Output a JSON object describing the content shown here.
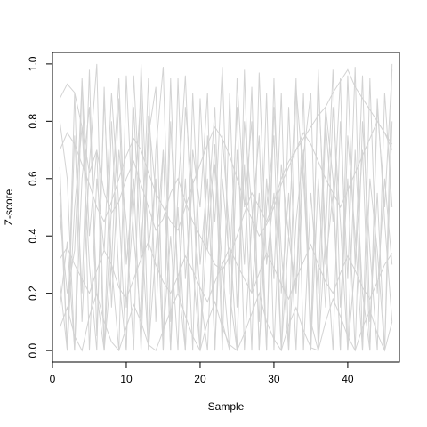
{
  "chart_data": {
    "type": "line",
    "title": "",
    "xlabel": "Sample",
    "ylabel": "Z-score",
    "x": [
      1,
      2,
      3,
      4,
      5,
      6,
      7,
      8,
      9,
      10,
      11,
      12,
      13,
      14,
      15,
      16,
      17,
      18,
      19,
      20,
      21,
      22,
      23,
      24,
      25,
      26,
      27,
      28,
      29,
      30,
      31,
      32,
      33,
      34,
      35,
      36,
      37,
      38,
      39,
      40,
      41,
      42,
      43,
      44,
      45,
      46
    ],
    "xlim": [
      0,
      47
    ],
    "ylim": [
      -0.04,
      1.04
    ],
    "x_ticks": [
      "0",
      "10",
      "20",
      "30",
      "40"
    ],
    "x_tick_values": [
      0,
      10,
      20,
      30,
      40
    ],
    "y_ticks": [
      "0.0",
      "0.2",
      "0.4",
      "0.6",
      "0.8",
      "1.0"
    ],
    "y_tick_values": [
      0,
      0.2,
      0.4,
      0.6,
      0.8,
      1.0
    ],
    "grid": false,
    "legend": "none",
    "line_color": "#d3d3d3",
    "axis_color": "#000000",
    "series": [
      {
        "values": [
          0.88,
          0.93,
          0.9,
          0.78,
          0.62,
          0.7,
          0.55,
          0.48,
          0.52,
          0.6,
          0.66,
          0.58,
          0.5,
          0.42,
          0.46,
          0.55,
          0.6,
          0.52,
          0.45,
          0.4,
          0.35,
          0.3,
          0.28,
          0.33,
          0.4,
          0.48,
          0.55,
          0.5,
          0.45,
          0.52,
          0.6,
          0.66,
          0.7,
          0.74,
          0.78,
          0.82,
          0.85,
          0.9,
          0.94,
          0.98,
          0.92,
          0.88,
          0.84,
          0.8,
          0.76,
          0.72
        ]
      },
      {
        "values": [
          0.64,
          0.0,
          0.75,
          0.2,
          0.98,
          0.05,
          0.88,
          0.3,
          0.0,
          0.96,
          0.4,
          0.1,
          0.82,
          0.55,
          0.0,
          0.95,
          0.2,
          0.6,
          0.0,
          0.88,
          0.35,
          0.72,
          0.0,
          0.9,
          0.15,
          0.65,
          0.0,
          0.97,
          0.3,
          0.55,
          0.0,
          0.85,
          0.2,
          0.7,
          0.05,
          0.93,
          0.4,
          0.0,
          0.8,
          0.25,
          0.99,
          0.0,
          0.6,
          0.35,
          0.0,
          1.0
        ]
      },
      {
        "values": [
          0.47,
          0.2,
          0.35,
          0.94,
          0.0,
          0.6,
          0.35,
          0.9,
          0.5,
          0.0,
          0.85,
          0.3,
          0.95,
          0.1,
          0.7,
          0.0,
          0.55,
          0.96,
          0.3,
          0.0,
          0.75,
          0.45,
          0.99,
          0.2,
          0.0,
          0.8,
          0.5,
          0.1,
          0.9,
          0.0,
          0.65,
          0.4,
          0.95,
          0.0,
          0.55,
          0.2,
          0.85,
          0.6,
          0.0,
          0.96,
          0.3,
          0.7,
          0.0,
          0.88,
          0.45,
          0.1
        ]
      },
      {
        "values": [
          0.24,
          0.0,
          0.5,
          0.78,
          0.3,
          0.0,
          0.92,
          0.15,
          0.7,
          0.45,
          0.0,
          1.0,
          0.35,
          0.6,
          0.0,
          0.8,
          0.25,
          0.0,
          0.7,
          0.5,
          0.9,
          0.0,
          0.6,
          0.3,
          0.85,
          0.0,
          0.45,
          0.75,
          0.0,
          0.95,
          0.2,
          0.55,
          0.0,
          0.68,
          0.9,
          0.0,
          0.4,
          0.98,
          0.15,
          0.6,
          0.0,
          0.8,
          0.35,
          0.0,
          0.9,
          0.5
        ]
      },
      {
        "values": [
          0.15,
          0.38,
          0.0,
          0.6,
          0.85,
          0.2,
          0.0,
          0.5,
          0.95,
          0.3,
          0.6,
          0.0,
          0.75,
          0.92,
          0.05,
          0.4,
          0.0,
          0.85,
          0.55,
          0.2,
          0.0,
          0.65,
          0.3,
          0.0,
          0.95,
          0.5,
          0.8,
          0.0,
          0.6,
          0.25,
          0.9,
          0.0,
          0.45,
          0.7,
          0.0,
          0.98,
          0.3,
          0.55,
          0.0,
          0.75,
          0.4,
          0.0,
          0.95,
          0.2,
          0.6,
          0.3
        ]
      },
      {
        "values": [
          0.7,
          0.76,
          0.72,
          0.65,
          0.58,
          0.5,
          0.45,
          0.52,
          0.6,
          0.68,
          0.74,
          0.7,
          0.62,
          0.55,
          0.5,
          0.45,
          0.42,
          0.5,
          0.58,
          0.65,
          0.72,
          0.78,
          0.74,
          0.68,
          0.6,
          0.52,
          0.46,
          0.4,
          0.44,
          0.5,
          0.58,
          0.64,
          0.7,
          0.76,
          0.72,
          0.66,
          0.6,
          0.55,
          0.5,
          0.56,
          0.62,
          0.68,
          0.74,
          0.8,
          0.76,
          0.7
        ]
      },
      {
        "values": [
          0.32,
          0.36,
          0.3,
          0.25,
          0.2,
          0.28,
          0.35,
          0.3,
          0.22,
          0.18,
          0.25,
          0.32,
          0.38,
          0.3,
          0.24,
          0.2,
          0.26,
          0.33,
          0.28,
          0.22,
          0.17,
          0.24,
          0.3,
          0.36,
          0.3,
          0.25,
          0.2,
          0.27,
          0.34,
          0.29,
          0.23,
          0.18,
          0.25,
          0.31,
          0.37,
          0.3,
          0.24,
          0.2,
          0.27,
          0.33,
          0.28,
          0.22,
          0.18,
          0.24,
          0.3,
          0.34
        ]
      },
      {
        "values": [
          0.55,
          0.0,
          0.9,
          0.1,
          0.65,
          1.0,
          0.0,
          0.8,
          0.25,
          0.0,
          0.96,
          0.45,
          0.0,
          0.7,
          0.99,
          0.1,
          0.5,
          0.0,
          0.9,
          0.3,
          0.6,
          0.0,
          0.75,
          0.4,
          0.0,
          0.98,
          0.2,
          0.55,
          0.0,
          0.85,
          0.35,
          0.0,
          0.92,
          0.6,
          0.1,
          0.0,
          0.8,
          0.45,
          0.95,
          0.0,
          0.7,
          0.2,
          0.0,
          0.85,
          0.5,
          0.98
        ]
      },
      {
        "values": [
          0.08,
          0.15,
          0.05,
          0.0,
          0.12,
          0.2,
          0.1,
          0.03,
          0.0,
          0.08,
          0.16,
          0.1,
          0.02,
          0.0,
          0.07,
          0.14,
          0.2,
          0.12,
          0.05,
          0.0,
          0.1,
          0.17,
          0.08,
          0.02,
          0.0,
          0.06,
          0.13,
          0.2,
          0.1,
          0.04,
          0.0,
          0.09,
          0.15,
          0.07,
          0.01,
          0.0,
          0.1,
          0.18,
          0.12,
          0.05,
          0.0,
          0.08,
          0.14,
          0.06,
          0.0,
          0.1
        ]
      },
      {
        "values": [
          0.8,
          0.6,
          0.0,
          0.95,
          0.4,
          0.7,
          0.0,
          0.3,
          0.88,
          0.15,
          0.5,
          0.9,
          0.0,
          0.35,
          0.7,
          0.0,
          0.95,
          0.25,
          0.6,
          0.0,
          0.45,
          0.85,
          0.1,
          0.0,
          0.7,
          0.3,
          0.92,
          0.0,
          0.5,
          0.75,
          0.0,
          0.4,
          0.2,
          0.9,
          0.0,
          0.6,
          0.15,
          0.85,
          0.45,
          0.0,
          0.3,
          0.96,
          0.1,
          0.55,
          0.0,
          0.8
        ]
      }
    ]
  }
}
